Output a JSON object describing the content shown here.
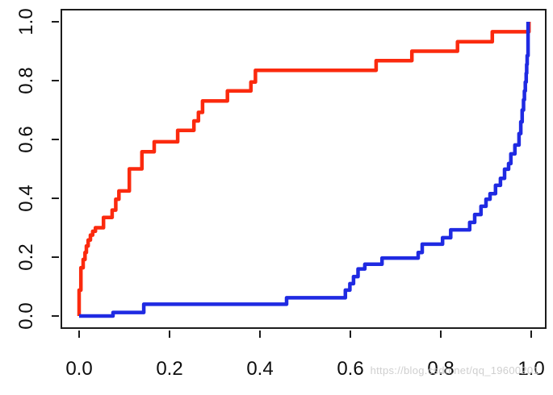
{
  "watermark": "https://blog.csdn.net/qq_19600201",
  "colors": {
    "red_series": "#fb2a0e",
    "blue_series": "#1f2ae2",
    "axis": "#1c1c1c",
    "watermark_gray": "#c7c7c7",
    "background": "#ffffff"
  },
  "chart_data": {
    "type": "line",
    "subtype": "step",
    "title": "",
    "xlabel": "",
    "ylabel": "",
    "xlim": [
      0.0,
      1.0
    ],
    "ylim": [
      0.0,
      1.0
    ],
    "grid": false,
    "legend_position": "none",
    "x_ticks": [
      {
        "value": 0.0,
        "label": "0.0"
      },
      {
        "value": 0.2,
        "label": "0.2"
      },
      {
        "value": 0.4,
        "label": "0.4"
      },
      {
        "value": 0.6,
        "label": "0.6"
      },
      {
        "value": 0.8,
        "label": "0.8"
      },
      {
        "value": 1.0,
        "label": "1.0"
      }
    ],
    "y_ticks": [
      {
        "value": 0.0,
        "label": "0.0"
      },
      {
        "value": 0.2,
        "label": "0.2"
      },
      {
        "value": 0.4,
        "label": "0.4"
      },
      {
        "value": 0.6,
        "label": "0.6"
      },
      {
        "value": 0.8,
        "label": "0.8"
      },
      {
        "value": 1.0,
        "label": "1.0"
      }
    ],
    "series": [
      {
        "name": "red-curve",
        "color": "#fb2a0e",
        "stroke_width": 4.5,
        "points": [
          [
            0.0,
            0.0
          ],
          [
            0.0,
            0.088
          ],
          [
            0.004,
            0.164
          ],
          [
            0.009,
            0.192
          ],
          [
            0.013,
            0.216
          ],
          [
            0.016,
            0.238
          ],
          [
            0.02,
            0.258
          ],
          [
            0.025,
            0.275
          ],
          [
            0.03,
            0.288
          ],
          [
            0.036,
            0.3
          ],
          [
            0.054,
            0.335
          ],
          [
            0.073,
            0.36
          ],
          [
            0.081,
            0.397
          ],
          [
            0.088,
            0.425
          ],
          [
            0.111,
            0.5
          ],
          [
            0.139,
            0.558
          ],
          [
            0.166,
            0.592
          ],
          [
            0.218,
            0.631
          ],
          [
            0.254,
            0.663
          ],
          [
            0.264,
            0.692
          ],
          [
            0.273,
            0.731
          ],
          [
            0.328,
            0.765
          ],
          [
            0.38,
            0.795
          ],
          [
            0.39,
            0.835
          ],
          [
            0.657,
            0.868
          ],
          [
            0.736,
            0.9
          ],
          [
            0.837,
            0.932
          ],
          [
            0.914,
            0.966
          ],
          [
            0.995,
            1.0
          ]
        ]
      },
      {
        "name": "blue-curve",
        "color": "#1f2ae2",
        "stroke_width": 4.5,
        "points": [
          [
            0.0,
            0.0
          ],
          [
            0.075,
            0.012
          ],
          [
            0.143,
            0.04
          ],
          [
            0.459,
            0.062
          ],
          [
            0.589,
            0.088
          ],
          [
            0.599,
            0.11
          ],
          [
            0.607,
            0.134
          ],
          [
            0.617,
            0.16
          ],
          [
            0.632,
            0.176
          ],
          [
            0.67,
            0.197
          ],
          [
            0.75,
            0.216
          ],
          [
            0.759,
            0.244
          ],
          [
            0.804,
            0.266
          ],
          [
            0.822,
            0.293
          ],
          [
            0.864,
            0.318
          ],
          [
            0.875,
            0.345
          ],
          [
            0.889,
            0.373
          ],
          [
            0.9,
            0.397
          ],
          [
            0.909,
            0.416
          ],
          [
            0.921,
            0.444
          ],
          [
            0.932,
            0.468
          ],
          [
            0.941,
            0.499
          ],
          [
            0.95,
            0.518
          ],
          [
            0.955,
            0.551
          ],
          [
            0.964,
            0.581
          ],
          [
            0.973,
            0.62
          ],
          [
            0.977,
            0.66
          ],
          [
            0.98,
            0.7
          ],
          [
            0.983,
            0.735
          ],
          [
            0.985,
            0.765
          ],
          [
            0.987,
            0.795
          ],
          [
            0.989,
            0.825
          ],
          [
            0.99,
            0.855
          ],
          [
            0.991,
            0.885
          ],
          [
            0.993,
            1.0
          ]
        ]
      }
    ]
  }
}
